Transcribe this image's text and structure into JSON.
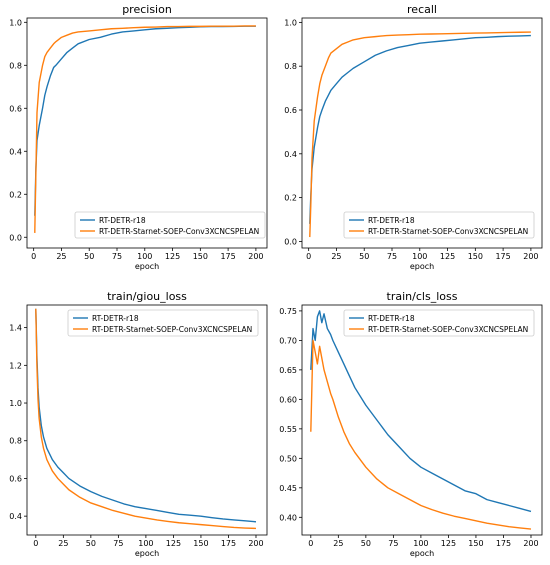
{
  "colors": {
    "series_1": "#1f77b4",
    "series_2": "#ff7f0e"
  },
  "chart_data": [
    {
      "type": "line",
      "title": "precision",
      "xlabel": "epoch",
      "ylabel": "",
      "xlim": [
        -6,
        210
      ],
      "ylim": [
        -0.05,
        1.02
      ],
      "xticks": [
        0,
        25,
        50,
        75,
        100,
        125,
        150,
        175,
        200
      ],
      "xtick_labels": [
        "0",
        "25",
        "50",
        "75",
        "100",
        "125",
        "150",
        "175",
        "200"
      ],
      "yticks": [
        0.0,
        0.2,
        0.4,
        0.6,
        0.8,
        1.0
      ],
      "ytick_labels": [
        "0.0",
        "0.2",
        "0.4",
        "0.6",
        "0.8",
        "1.0"
      ],
      "legend": "lower-right",
      "grid": false,
      "series": [
        {
          "name": "RT-DETR-r18",
          "color": "#1f77b4",
          "x": [
            1,
            2,
            3,
            5,
            8,
            10,
            12,
            15,
            18,
            20,
            25,
            30,
            35,
            40,
            50,
            60,
            70,
            80,
            90,
            100,
            110,
            120,
            130,
            140,
            150,
            160,
            170,
            180,
            190,
            200
          ],
          "y": [
            0.1,
            0.32,
            0.45,
            0.52,
            0.6,
            0.66,
            0.7,
            0.75,
            0.79,
            0.8,
            0.83,
            0.86,
            0.88,
            0.9,
            0.92,
            0.93,
            0.945,
            0.955,
            0.96,
            0.965,
            0.97,
            0.972,
            0.975,
            0.977,
            0.979,
            0.98,
            0.98,
            0.981,
            0.982,
            0.982
          ]
        },
        {
          "name": "RT-DETR-Starnet-SOEP-Conv3XCNCSPELAN",
          "color": "#ff7f0e",
          "x": [
            1,
            2,
            3,
            5,
            8,
            10,
            12,
            15,
            18,
            20,
            25,
            30,
            35,
            40,
            50,
            60,
            70,
            80,
            90,
            100,
            110,
            120,
            130,
            140,
            150,
            160,
            170,
            180,
            190,
            200
          ],
          "y": [
            0.02,
            0.3,
            0.58,
            0.72,
            0.8,
            0.84,
            0.86,
            0.88,
            0.9,
            0.91,
            0.93,
            0.94,
            0.95,
            0.955,
            0.96,
            0.965,
            0.97,
            0.972,
            0.975,
            0.977,
            0.978,
            0.98,
            0.98,
            0.981,
            0.981,
            0.982,
            0.982,
            0.982,
            0.983,
            0.983
          ]
        }
      ]
    },
    {
      "type": "line",
      "title": "recall",
      "xlabel": "epoch",
      "ylabel": "",
      "xlim": [
        -6,
        210
      ],
      "ylim": [
        -0.03,
        1.02
      ],
      "xticks": [
        0,
        25,
        50,
        75,
        100,
        125,
        150,
        175,
        200
      ],
      "xtick_labels": [
        "0",
        "25",
        "50",
        "75",
        "100",
        "125",
        "150",
        "175",
        "200"
      ],
      "yticks": [
        0.0,
        0.2,
        0.4,
        0.6,
        0.8,
        1.0
      ],
      "ytick_labels": [
        "0.0",
        "0.2",
        "0.4",
        "0.6",
        "0.8",
        "1.0"
      ],
      "legend": "lower-right",
      "grid": false,
      "series": [
        {
          "name": "RT-DETR-r18",
          "color": "#1f77b4",
          "x": [
            1,
            2,
            3,
            5,
            8,
            10,
            12,
            15,
            18,
            20,
            25,
            30,
            35,
            40,
            50,
            60,
            70,
            80,
            90,
            100,
            110,
            120,
            130,
            140,
            150,
            160,
            170,
            180,
            190,
            200
          ],
          "y": [
            0.08,
            0.22,
            0.33,
            0.43,
            0.52,
            0.57,
            0.6,
            0.64,
            0.67,
            0.69,
            0.72,
            0.75,
            0.77,
            0.79,
            0.82,
            0.85,
            0.87,
            0.885,
            0.895,
            0.905,
            0.91,
            0.915,
            0.92,
            0.925,
            0.93,
            0.932,
            0.935,
            0.937,
            0.938,
            0.94
          ]
        },
        {
          "name": "RT-DETR-Starnet-SOEP-Conv3XCNCSPELAN",
          "color": "#ff7f0e",
          "x": [
            1,
            2,
            3,
            5,
            8,
            10,
            12,
            15,
            18,
            20,
            25,
            30,
            35,
            40,
            50,
            60,
            70,
            80,
            90,
            100,
            110,
            120,
            130,
            140,
            150,
            160,
            170,
            180,
            190,
            200
          ],
          "y": [
            0.02,
            0.18,
            0.38,
            0.55,
            0.66,
            0.72,
            0.76,
            0.8,
            0.84,
            0.86,
            0.88,
            0.9,
            0.91,
            0.92,
            0.93,
            0.935,
            0.94,
            0.942,
            0.944,
            0.946,
            0.947,
            0.948,
            0.949,
            0.95,
            0.951,
            0.952,
            0.953,
            0.954,
            0.955,
            0.956
          ]
        }
      ]
    },
    {
      "type": "line",
      "title": "train/giou_loss",
      "xlabel": "epoch",
      "ylabel": "",
      "xlim": [
        -8,
        210
      ],
      "ylim": [
        0.3,
        1.52
      ],
      "xticks": [
        0,
        25,
        50,
        75,
        100,
        125,
        150,
        175,
        200
      ],
      "xtick_labels": [
        "0",
        "25",
        "50",
        "75",
        "100",
        "125",
        "150",
        "175",
        "200"
      ],
      "yticks": [
        0.4,
        0.6,
        0.8,
        1.0,
        1.2,
        1.4
      ],
      "ytick_labels": [
        "0.4",
        "0.6",
        "0.8",
        "1.0",
        "1.2",
        "1.4"
      ],
      "legend": "upper-right",
      "grid": false,
      "series": [
        {
          "name": "RT-DETR-r18",
          "color": "#1f77b4",
          "x": [
            0,
            1,
            2,
            3,
            5,
            7,
            10,
            15,
            20,
            25,
            30,
            40,
            50,
            60,
            70,
            80,
            90,
            100,
            110,
            120,
            130,
            140,
            150,
            160,
            170,
            180,
            190,
            200
          ],
          "y": [
            1.5,
            1.25,
            1.08,
            0.98,
            0.88,
            0.82,
            0.76,
            0.7,
            0.66,
            0.63,
            0.6,
            0.56,
            0.53,
            0.505,
            0.485,
            0.465,
            0.45,
            0.44,
            0.43,
            0.42,
            0.41,
            0.405,
            0.4,
            0.392,
            0.385,
            0.38,
            0.375,
            0.37
          ]
        },
        {
          "name": "RT-DETR-Starnet-SOEP-Conv3XCNCSPELAN",
          "color": "#ff7f0e",
          "x": [
            0,
            1,
            2,
            3,
            5,
            7,
            10,
            15,
            20,
            25,
            30,
            40,
            50,
            60,
            70,
            80,
            90,
            100,
            110,
            120,
            130,
            140,
            150,
            160,
            170,
            180,
            190,
            200
          ],
          "y": [
            1.5,
            1.2,
            1.02,
            0.92,
            0.82,
            0.76,
            0.7,
            0.64,
            0.6,
            0.57,
            0.54,
            0.5,
            0.47,
            0.45,
            0.43,
            0.415,
            0.4,
            0.39,
            0.38,
            0.372,
            0.365,
            0.36,
            0.355,
            0.35,
            0.345,
            0.34,
            0.337,
            0.335
          ]
        }
      ]
    },
    {
      "type": "line",
      "title": "train/cls_loss",
      "xlabel": "epoch",
      "ylabel": "",
      "xlim": [
        -8,
        210
      ],
      "ylim": [
        0.37,
        0.76
      ],
      "xticks": [
        0,
        25,
        50,
        75,
        100,
        125,
        150,
        175,
        200
      ],
      "xtick_labels": [
        "0",
        "25",
        "50",
        "75",
        "100",
        "125",
        "150",
        "175",
        "200"
      ],
      "yticks": [
        0.4,
        0.45,
        0.5,
        0.55,
        0.6,
        0.65,
        0.7,
        0.75
      ],
      "ytick_labels": [
        "0.40",
        "0.45",
        "0.50",
        "0.55",
        "0.60",
        "0.65",
        "0.70",
        "0.75"
      ],
      "legend": "upper-right",
      "grid": false,
      "series": [
        {
          "name": "RT-DETR-r18",
          "color": "#1f77b4",
          "x": [
            0,
            2,
            4,
            6,
            8,
            10,
            12,
            15,
            18,
            20,
            25,
            30,
            35,
            40,
            50,
            60,
            70,
            80,
            90,
            100,
            110,
            120,
            130,
            140,
            150,
            160,
            170,
            180,
            190,
            200
          ],
          "y": [
            0.65,
            0.72,
            0.7,
            0.74,
            0.75,
            0.73,
            0.745,
            0.72,
            0.71,
            0.7,
            0.68,
            0.66,
            0.64,
            0.62,
            0.59,
            0.565,
            0.54,
            0.52,
            0.5,
            0.485,
            0.475,
            0.465,
            0.455,
            0.445,
            0.44,
            0.43,
            0.425,
            0.42,
            0.415,
            0.41
          ]
        },
        {
          "name": "RT-DETR-Starnet-SOEP-Conv3XCNCSPELAN",
          "color": "#ff7f0e",
          "x": [
            0,
            2,
            4,
            6,
            8,
            10,
            12,
            15,
            18,
            20,
            25,
            30,
            35,
            40,
            50,
            60,
            70,
            80,
            90,
            100,
            110,
            120,
            130,
            140,
            150,
            160,
            170,
            180,
            190,
            200
          ],
          "y": [
            0.545,
            0.7,
            0.68,
            0.66,
            0.69,
            0.67,
            0.65,
            0.63,
            0.61,
            0.6,
            0.57,
            0.545,
            0.525,
            0.51,
            0.485,
            0.465,
            0.45,
            0.44,
            0.43,
            0.42,
            0.413,
            0.407,
            0.402,
            0.398,
            0.394,
            0.39,
            0.387,
            0.384,
            0.382,
            0.38
          ]
        }
      ]
    }
  ]
}
